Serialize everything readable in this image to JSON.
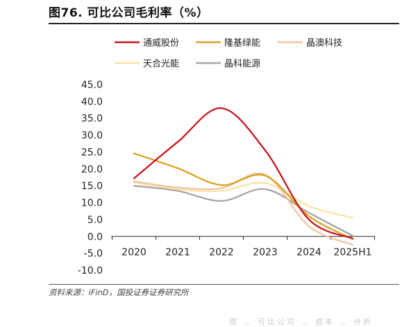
{
  "title": "图76. 可比公司毛利率（%）",
  "source": "资料来源：iFinD，国投证券证券研究所",
  "footer_text": "图 … 可比公司 … 成本 … 分析",
  "chart_data": {
    "type": "line",
    "title": "图76. 可比公司毛利率（%）",
    "xlabel": "",
    "ylabel": "",
    "categories": [
      "2020",
      "2021",
      "2022",
      "2023",
      "2024",
      "2025H1"
    ],
    "ylim": [
      -10,
      45
    ],
    "yticks": [
      "45.0",
      "40.0",
      "35.0",
      "30.0",
      "25.0",
      "20.0",
      "15.0",
      "10.0",
      "5.0",
      "0.0",
      "-5.0",
      "-10.0"
    ],
    "grid": false,
    "legend_position": "top",
    "series": [
      {
        "name": "通威股份",
        "color": "#c8141f",
        "values": [
          17.2,
          28.0,
          38.0,
          25.5,
          5.0,
          -0.6
        ]
      },
      {
        "name": "隆基绿能",
        "color": "#d9a21b",
        "values": [
          24.6,
          20.2,
          15.2,
          18.0,
          6.0,
          -0.8
        ]
      },
      {
        "name": "晶澳科技",
        "color": "#f2c2a6",
        "values": [
          16.3,
          14.5,
          14.3,
          18.3,
          3.0,
          -2.5
        ]
      },
      {
        "name": "天合光能",
        "color": "#fbe3a0",
        "values": [
          16.0,
          14.0,
          13.5,
          15.8,
          9.0,
          5.5
        ]
      },
      {
        "name": "晶科能源",
        "color": "#a8a3a6",
        "values": [
          15.0,
          13.5,
          10.5,
          14.0,
          7.0,
          0.2
        ]
      }
    ]
  }
}
